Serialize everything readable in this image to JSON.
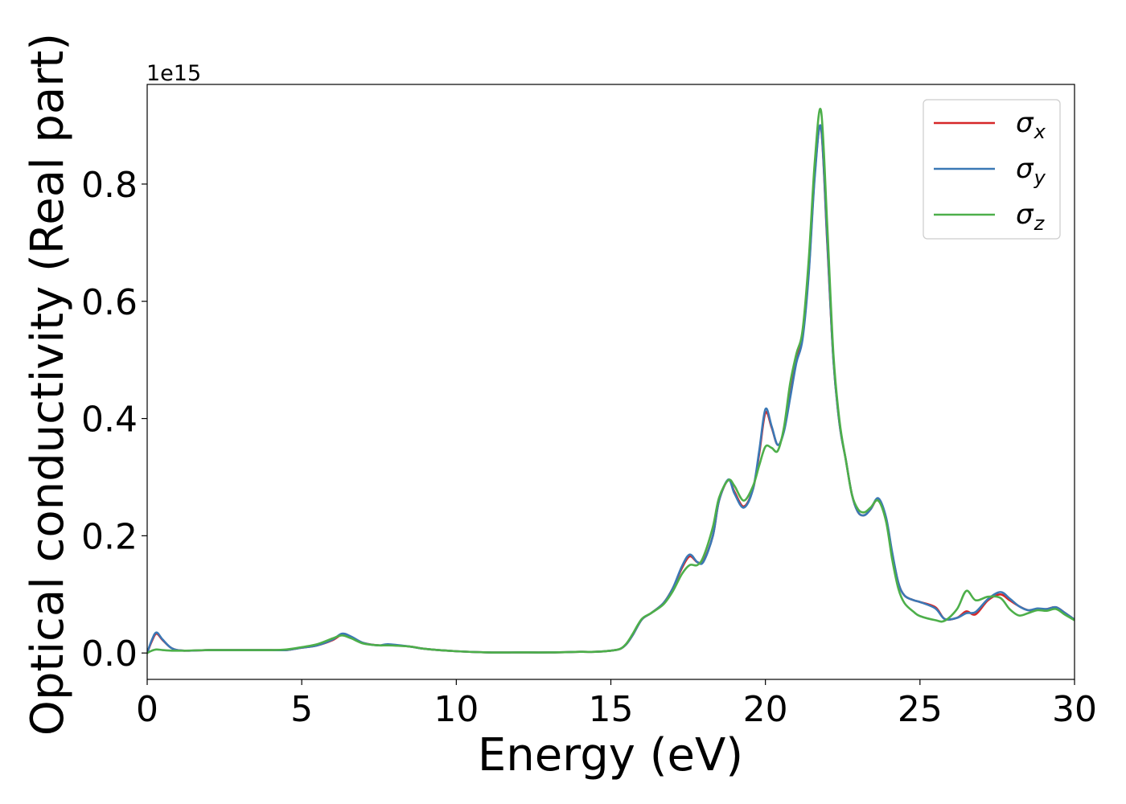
{
  "chart_data": {
    "type": "line",
    "xlabel": "Energy (eV)",
    "ylabel": "Optical conductivity (Real part)",
    "offset_text": "1e15",
    "xlim": [
      0,
      30
    ],
    "ylim": [
      -0.045,
      0.97
    ],
    "xticks": [
      0,
      5,
      10,
      15,
      20,
      25,
      30
    ],
    "xtick_labels": [
      "0",
      "5",
      "10",
      "15",
      "20",
      "25",
      "30"
    ],
    "yticks": [
      0.0,
      0.2,
      0.4,
      0.6,
      0.8
    ],
    "ytick_labels": [
      "0.0",
      "0.2",
      "0.4",
      "0.6",
      "0.8"
    ],
    "legend_position": "top-right",
    "grid": false,
    "series": [
      {
        "name": "σx",
        "label_base": "σ",
        "label_sub": "x",
        "color": "#d62728",
        "x": [
          0,
          0.15,
          0.3,
          0.5,
          0.8,
          1.2,
          2,
          3,
          4,
          4.5,
          5,
          5.5,
          6,
          6.3,
          6.6,
          7,
          7.5,
          7.8,
          8.5,
          9,
          10,
          11,
          12,
          13,
          14,
          14.5,
          15,
          15.3,
          15.5,
          15.7,
          16,
          16.3,
          16.7,
          17,
          17.3,
          17.55,
          17.8,
          18,
          18.3,
          18.5,
          18.8,
          19,
          19.3,
          19.6,
          19.8,
          20,
          20.2,
          20.4,
          20.6,
          20.8,
          21,
          21.2,
          21.4,
          21.6,
          21.8,
          22,
          22.2,
          22.4,
          22.6,
          22.8,
          23,
          23.2,
          23.4,
          23.65,
          23.9,
          24.1,
          24.3,
          24.5,
          24.8,
          25,
          25.5,
          25.8,
          26.2,
          26.5,
          26.8,
          27.2,
          27.6,
          27.9,
          28.2,
          28.5,
          28.8,
          29.1,
          29.4,
          29.7,
          30
        ],
        "y": [
          0.0,
          0.02,
          0.033,
          0.022,
          0.008,
          0.004,
          0.005,
          0.005,
          0.005,
          0.005,
          0.009,
          0.013,
          0.022,
          0.031,
          0.027,
          0.017,
          0.013,
          0.014,
          0.011,
          0.007,
          0.003,
          0.001,
          0.001,
          0.001,
          0.002,
          0.002,
          0.004,
          0.007,
          0.015,
          0.03,
          0.057,
          0.068,
          0.085,
          0.11,
          0.145,
          0.165,
          0.155,
          0.158,
          0.2,
          0.26,
          0.295,
          0.275,
          0.25,
          0.28,
          0.34,
          0.41,
          0.385,
          0.355,
          0.38,
          0.44,
          0.5,
          0.54,
          0.65,
          0.82,
          0.895,
          0.7,
          0.5,
          0.39,
          0.33,
          0.27,
          0.24,
          0.235,
          0.245,
          0.262,
          0.23,
          0.17,
          0.12,
          0.098,
          0.09,
          0.087,
          0.078,
          0.058,
          0.06,
          0.071,
          0.066,
          0.09,
          0.1,
          0.09,
          0.08,
          0.073,
          0.074,
          0.075,
          0.078,
          0.068,
          0.057
        ]
      },
      {
        "name": "σy",
        "label_base": "σ",
        "label_sub": "y",
        "color": "#3b78b5",
        "x": [
          0,
          0.15,
          0.3,
          0.5,
          0.8,
          1.2,
          2,
          3,
          4,
          4.5,
          5,
          5.5,
          6,
          6.3,
          6.6,
          7,
          7.5,
          7.8,
          8.5,
          9,
          10,
          11,
          12,
          13,
          14,
          14.5,
          15,
          15.3,
          15.5,
          15.7,
          16,
          16.3,
          16.7,
          17,
          17.3,
          17.55,
          17.8,
          18,
          18.3,
          18.5,
          18.8,
          19,
          19.3,
          19.6,
          19.8,
          20,
          20.2,
          20.4,
          20.6,
          20.8,
          21,
          21.2,
          21.4,
          21.6,
          21.8,
          22,
          22.2,
          22.4,
          22.6,
          22.8,
          23,
          23.2,
          23.4,
          23.65,
          23.9,
          24.1,
          24.3,
          24.5,
          24.8,
          25,
          25.5,
          25.8,
          26.2,
          26.5,
          26.8,
          27.2,
          27.6,
          27.9,
          28.2,
          28.5,
          28.8,
          29.1,
          29.4,
          29.7,
          30
        ],
        "y": [
          0.0,
          0.022,
          0.035,
          0.023,
          0.008,
          0.004,
          0.005,
          0.005,
          0.005,
          0.005,
          0.009,
          0.013,
          0.023,
          0.033,
          0.028,
          0.017,
          0.013,
          0.015,
          0.011,
          0.007,
          0.003,
          0.001,
          0.001,
          0.001,
          0.002,
          0.002,
          0.004,
          0.007,
          0.015,
          0.03,
          0.057,
          0.068,
          0.085,
          0.11,
          0.148,
          0.168,
          0.155,
          0.156,
          0.2,
          0.26,
          0.296,
          0.272,
          0.248,
          0.28,
          0.345,
          0.416,
          0.387,
          0.355,
          0.378,
          0.435,
          0.495,
          0.535,
          0.645,
          0.815,
          0.897,
          0.705,
          0.5,
          0.39,
          0.33,
          0.27,
          0.24,
          0.235,
          0.245,
          0.264,
          0.232,
          0.172,
          0.12,
          0.098,
          0.09,
          0.087,
          0.076,
          0.058,
          0.06,
          0.068,
          0.07,
          0.092,
          0.104,
          0.093,
          0.08,
          0.073,
          0.076,
          0.075,
          0.078,
          0.068,
          0.057
        ]
      },
      {
        "name": "σz",
        "label_base": "σ",
        "label_sub": "z",
        "color": "#4daf4a",
        "x": [
          0,
          0.15,
          0.3,
          0.5,
          0.8,
          1.2,
          2,
          3,
          4,
          4.5,
          5,
          5.5,
          6,
          6.3,
          6.6,
          7,
          7.5,
          7.8,
          8.5,
          9,
          10,
          11,
          12,
          13,
          14,
          14.5,
          15,
          15.3,
          15.5,
          15.7,
          16,
          16.3,
          16.7,
          17,
          17.3,
          17.55,
          17.8,
          18,
          18.3,
          18.5,
          18.8,
          19,
          19.3,
          19.6,
          19.8,
          20,
          20.2,
          20.4,
          20.6,
          20.8,
          21,
          21.2,
          21.4,
          21.6,
          21.8,
          22,
          22.2,
          22.4,
          22.6,
          22.8,
          23,
          23.2,
          23.4,
          23.65,
          23.9,
          24.1,
          24.3,
          24.5,
          24.8,
          25,
          25.5,
          25.8,
          26.2,
          26.5,
          26.8,
          27.2,
          27.6,
          27.9,
          28.2,
          28.5,
          28.8,
          29.1,
          29.4,
          29.7,
          30
        ],
        "y": [
          0.0,
          0.004,
          0.006,
          0.005,
          0.004,
          0.004,
          0.005,
          0.005,
          0.005,
          0.006,
          0.01,
          0.015,
          0.025,
          0.03,
          0.025,
          0.016,
          0.013,
          0.013,
          0.011,
          0.007,
          0.003,
          0.001,
          0.001,
          0.001,
          0.002,
          0.002,
          0.004,
          0.007,
          0.016,
          0.032,
          0.058,
          0.068,
          0.083,
          0.105,
          0.135,
          0.15,
          0.15,
          0.165,
          0.215,
          0.265,
          0.295,
          0.285,
          0.26,
          0.285,
          0.32,
          0.352,
          0.35,
          0.345,
          0.385,
          0.46,
          0.51,
          0.55,
          0.67,
          0.84,
          0.925,
          0.73,
          0.51,
          0.395,
          0.33,
          0.27,
          0.245,
          0.24,
          0.248,
          0.26,
          0.225,
          0.16,
          0.11,
          0.085,
          0.07,
          0.063,
          0.056,
          0.055,
          0.075,
          0.106,
          0.09,
          0.096,
          0.094,
          0.075,
          0.064,
          0.068,
          0.073,
          0.072,
          0.075,
          0.065,
          0.056
        ]
      }
    ]
  }
}
